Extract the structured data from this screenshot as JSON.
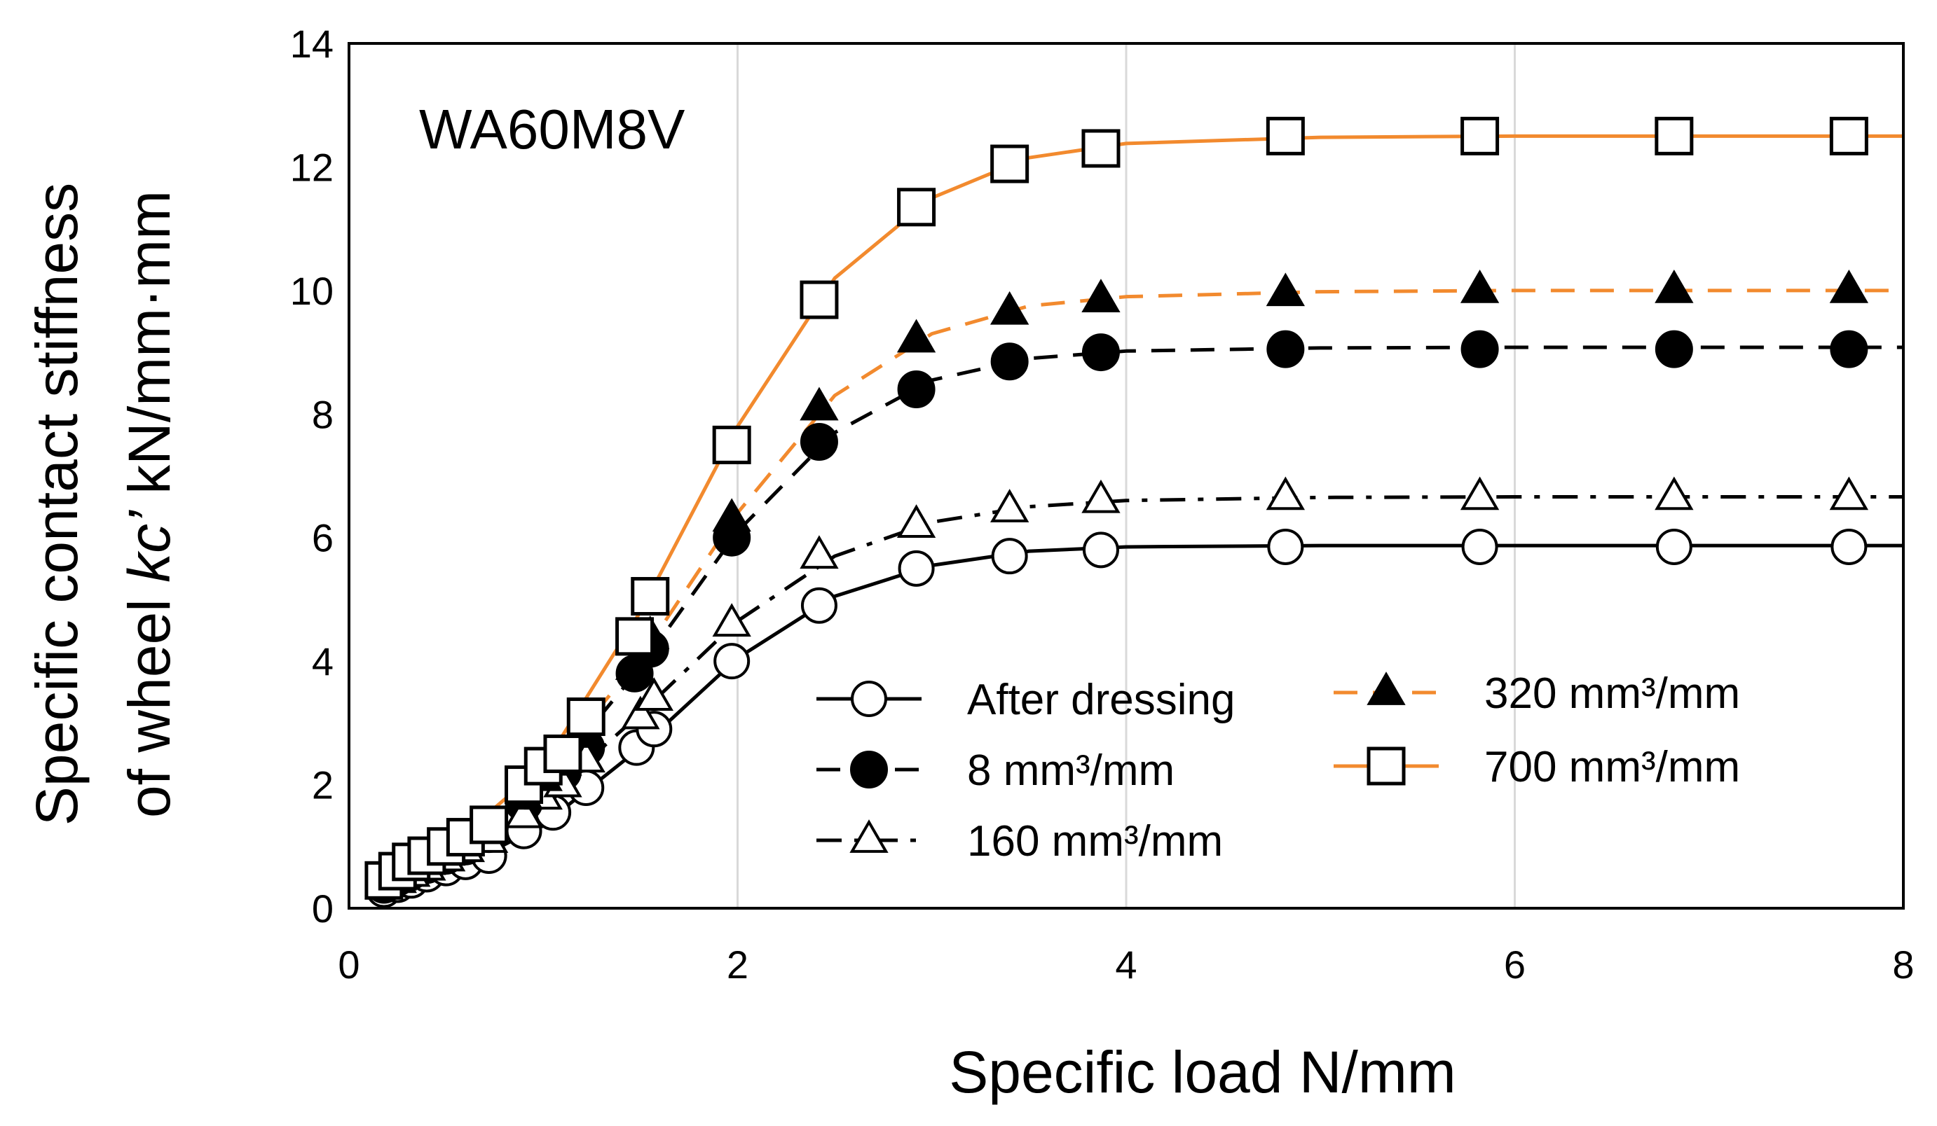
{
  "chart_data": {
    "type": "line",
    "title": "",
    "annotation": "WA60M8V",
    "xlabel": "Specific load N/mm",
    "ylabel_line1": "Specific contact stiffness",
    "ylabel_line2_pre": "of wheel ",
    "ylabel_line2_italic": "kc’",
    "ylabel_line2_post": " kN/mm·mm",
    "xlim": [
      0,
      8
    ],
    "ylim": [
      0,
      14
    ],
    "xticks": [
      0,
      2,
      4,
      6,
      8
    ],
    "yticks": [
      0,
      2,
      4,
      6,
      8,
      10,
      12,
      14
    ],
    "grid": "vertical",
    "legend_position": "lower-right",
    "colors": {
      "black": "#000000",
      "orange": "#f28a2e",
      "grid": "#d9d9d9"
    },
    "series": [
      {
        "name": "After dressing",
        "marker": "circle-open",
        "line": "solid",
        "color": "#000000",
        "x": [
          0.18,
          0.25,
          0.32,
          0.4,
          0.5,
          0.6,
          0.72,
          0.9,
          1.05,
          1.22,
          1.48,
          1.57,
          1.97,
          2.42,
          2.92,
          3.4,
          3.87,
          4.82,
          5.82,
          6.82,
          7.72
        ],
        "y": [
          0.3,
          0.38,
          0.45,
          0.55,
          0.65,
          0.75,
          0.85,
          1.25,
          1.55,
          1.95,
          2.6,
          2.9,
          4.0,
          4.9,
          5.5,
          5.7,
          5.8,
          5.85,
          5.85,
          5.85,
          5.85
        ]
      },
      {
        "name": "8 mm³/mm",
        "marker": "circle-filled",
        "line": "dashed",
        "color": "#000000",
        "x": [
          0.18,
          0.25,
          0.32,
          0.4,
          0.5,
          0.6,
          0.72,
          0.9,
          1.0,
          1.1,
          1.22,
          1.47,
          1.55,
          1.97,
          2.42,
          2.92,
          3.4,
          3.87,
          4.82,
          5.82,
          6.82,
          7.72
        ],
        "y": [
          0.38,
          0.5,
          0.6,
          0.7,
          0.85,
          1.0,
          1.2,
          1.7,
          2.0,
          2.2,
          2.6,
          3.8,
          4.2,
          6.0,
          7.55,
          8.4,
          8.85,
          9.0,
          9.05,
          9.05,
          9.05,
          9.05
        ]
      },
      {
        "name": "160 mm³/mm",
        "marker": "triangle-open",
        "line": "dash-dot",
        "color": "#000000",
        "x": [
          0.18,
          0.25,
          0.32,
          0.4,
          0.5,
          0.6,
          0.72,
          0.9,
          1.0,
          1.1,
          1.22,
          1.5,
          1.57,
          1.97,
          2.42,
          2.92,
          3.4,
          3.87,
          4.82,
          5.82,
          6.82,
          7.72
        ],
        "y": [
          0.35,
          0.45,
          0.55,
          0.65,
          0.8,
          0.95,
          1.1,
          1.5,
          1.8,
          2.0,
          2.4,
          3.1,
          3.4,
          4.6,
          5.7,
          6.2,
          6.45,
          6.6,
          6.65,
          6.65,
          6.65,
          6.65
        ]
      },
      {
        "name": "320 mm³/mm",
        "marker": "triangle-filled",
        "line": "dashed",
        "color": "#f28a2e",
        "x": [
          0.18,
          0.25,
          0.32,
          0.4,
          0.5,
          0.6,
          0.72,
          0.9,
          1.0,
          1.1,
          1.22,
          1.47,
          1.55,
          1.97,
          2.42,
          2.92,
          3.4,
          3.87,
          4.82,
          5.82,
          6.82,
          7.72
        ],
        "y": [
          0.4,
          0.55,
          0.65,
          0.75,
          0.9,
          1.05,
          1.25,
          1.8,
          2.1,
          2.35,
          2.8,
          3.9,
          4.4,
          6.3,
          8.1,
          9.2,
          9.65,
          9.85,
          9.95,
          10.0,
          10.0,
          10.0
        ]
      },
      {
        "name": "700 mm³/mm",
        "marker": "square-open",
        "line": "solid",
        "color": "#f28a2e",
        "x": [
          0.18,
          0.25,
          0.32,
          0.4,
          0.5,
          0.6,
          0.72,
          0.9,
          1.0,
          1.1,
          1.22,
          1.47,
          1.55,
          1.97,
          2.42,
          2.92,
          3.4,
          3.87,
          4.82,
          5.82,
          6.82,
          7.72
        ],
        "y": [
          0.45,
          0.6,
          0.75,
          0.85,
          1.0,
          1.15,
          1.35,
          2.0,
          2.3,
          2.5,
          3.1,
          4.4,
          5.05,
          7.5,
          9.85,
          11.35,
          12.05,
          12.3,
          12.5,
          12.5,
          12.5,
          12.5
        ]
      }
    ],
    "fit_curves": [
      {
        "series": "After dressing",
        "x": [
          0.18,
          0.5,
          1.0,
          1.5,
          2.0,
          2.5,
          3.0,
          3.5,
          4.0,
          5.0,
          6.0,
          7.0,
          8.0
        ],
        "y": [
          0.25,
          0.55,
          1.35,
          2.6,
          4.05,
          5.05,
          5.55,
          5.78,
          5.85,
          5.87,
          5.87,
          5.87,
          5.87
        ]
      },
      {
        "series": "8 mm³/mm",
        "x": [
          0.18,
          0.5,
          1.0,
          1.5,
          2.0,
          2.5,
          3.0,
          3.5,
          4.0,
          5.0,
          6.0,
          7.0,
          8.0
        ],
        "y": [
          0.35,
          0.8,
          2.0,
          3.9,
          6.1,
          7.7,
          8.55,
          8.9,
          9.02,
          9.07,
          9.08,
          9.08,
          9.08
        ]
      },
      {
        "series": "160 mm³/mm",
        "x": [
          0.18,
          0.5,
          1.0,
          1.5,
          2.0,
          2.5,
          3.0,
          3.5,
          4.0,
          5.0,
          6.0,
          7.0,
          8.0
        ],
        "y": [
          0.3,
          0.75,
          1.75,
          3.15,
          4.65,
          5.7,
          6.25,
          6.5,
          6.6,
          6.65,
          6.66,
          6.66,
          6.66
        ]
      },
      {
        "series": "320 mm³/mm",
        "x": [
          0.18,
          0.5,
          1.0,
          1.5,
          2.0,
          2.5,
          3.0,
          3.5,
          4.0,
          5.0,
          6.0,
          7.0,
          8.0
        ],
        "y": [
          0.38,
          0.85,
          2.15,
          4.05,
          6.4,
          8.3,
          9.3,
          9.75,
          9.9,
          9.98,
          10.0,
          10.0,
          10.0
        ]
      },
      {
        "series": "700 mm³/mm",
        "x": [
          0.18,
          0.5,
          1.0,
          1.5,
          2.0,
          2.5,
          3.0,
          3.5,
          4.0,
          5.0,
          6.0,
          7.0,
          8.0
        ],
        "y": [
          0.4,
          0.95,
          2.3,
          4.8,
          7.8,
          10.2,
          11.5,
          12.15,
          12.38,
          12.48,
          12.5,
          12.5,
          12.5
        ]
      }
    ]
  }
}
